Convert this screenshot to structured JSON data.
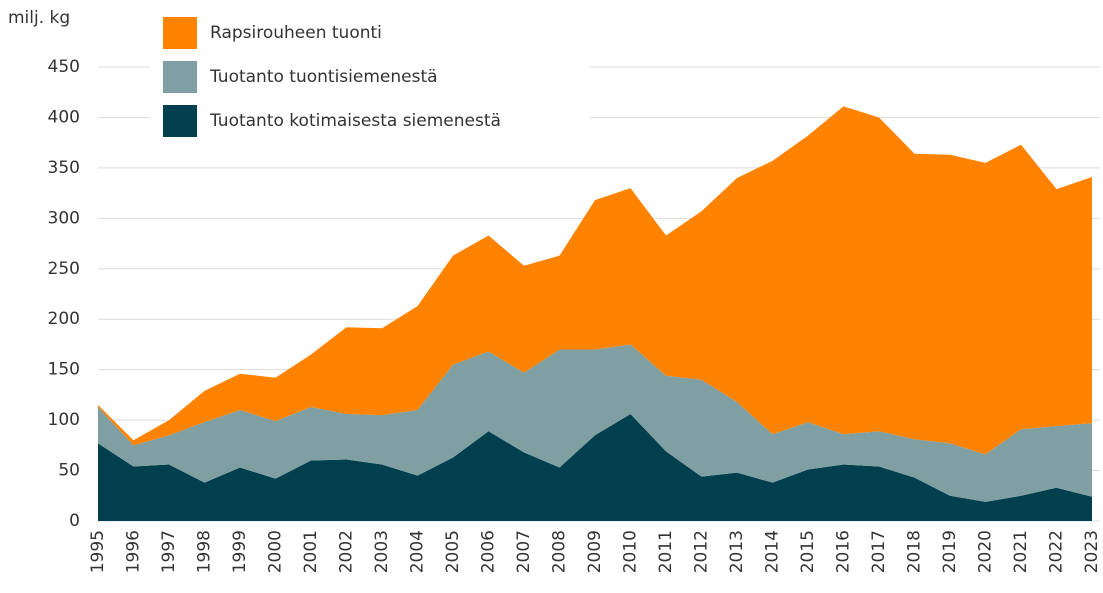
{
  "chart_data": {
    "type": "stacked_area",
    "y_label": "milj. kg",
    "categories": [
      "1995",
      "1996",
      "1997",
      "1998",
      "1999",
      "2000",
      "2001",
      "2002",
      "2003",
      "2004",
      "2005",
      "2006",
      "2007",
      "2008",
      "2009",
      "2010",
      "2011",
      "2012",
      "2013",
      "2014",
      "2015",
      "2016",
      "2017",
      "2018",
      "2019",
      "2020",
      "2021",
      "2022",
      "2023"
    ],
    "series": [
      {
        "name": "Tuotanto kotimaisesta siemenestä",
        "color": "#003f4e",
        "values": [
          77,
          54,
          56,
          38,
          53,
          42,
          60,
          61,
          56,
          45,
          63,
          89,
          68,
          53,
          85,
          106,
          69,
          44,
          48,
          38,
          51,
          56,
          54,
          43,
          25,
          19,
          25,
          33,
          24
        ]
      },
      {
        "name": "Tuotanto tuontisiemenestä",
        "color": "#7f9fa3",
        "values": [
          36,
          21,
          29,
          60,
          57,
          57,
          53,
          45,
          49,
          65,
          92,
          79,
          79,
          117,
          85,
          69,
          75,
          96,
          70,
          48,
          47,
          30,
          35,
          38,
          52,
          47,
          66,
          61,
          73
        ]
      },
      {
        "name": "Rapsirouheen tuonti",
        "color": "#ff8300",
        "values": [
          2,
          5,
          15,
          31,
          36,
          43,
          52,
          86,
          86,
          103,
          108,
          115,
          106,
          93,
          148,
          155,
          139,
          167,
          222,
          271,
          284,
          325,
          311,
          283,
          286,
          289,
          282,
          235,
          244
        ]
      }
    ],
    "ylim": [
      0,
      450
    ],
    "yticks": [
      0,
      50,
      100,
      150,
      200,
      250,
      300,
      350,
      400,
      450
    ],
    "grid": true,
    "legend": "top-left"
  }
}
